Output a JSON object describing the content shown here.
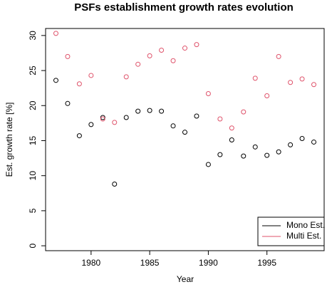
{
  "chart_data": {
    "type": "scatter",
    "title": "PSFs establishment growth rates evolution",
    "x_label": "Year",
    "y_label": "Est. growth rate [%]",
    "x": [
      1977,
      1978,
      1979,
      1980,
      1981,
      1982,
      1983,
      1984,
      1985,
      1986,
      1987,
      1988,
      1989,
      1990,
      1991,
      1992,
      1993,
      1994,
      1995,
      1996,
      1997,
      1998,
      1999
    ],
    "series": [
      {
        "name": "Mono Est.",
        "color": "#000000",
        "values": [
          23.6,
          20.3,
          15.7,
          17.3,
          18.3,
          8.8,
          18.3,
          19.2,
          19.3,
          19.2,
          17.1,
          16.2,
          18.5,
          11.6,
          13.0,
          15.1,
          12.8,
          14.1,
          12.9,
          13.4,
          14.4,
          15.3,
          14.8
        ]
      },
      {
        "name": "Multi Est.",
        "color": "#DF536B",
        "values": [
          30.3,
          27.0,
          23.1,
          24.3,
          18.1,
          17.6,
          24.1,
          25.9,
          27.1,
          27.9,
          26.4,
          28.2,
          28.7,
          21.7,
          18.1,
          16.8,
          19.1,
          23.9,
          21.4,
          27.0,
          23.3,
          23.8,
          23.0
        ]
      }
    ],
    "xlim": [
      1976.12,
      1999.88
    ],
    "ylim": [
      -0.7,
      31.0
    ],
    "xticks": [
      1980,
      1985,
      1990,
      1995
    ],
    "yticks": [
      0,
      5,
      10,
      15,
      20,
      25,
      30
    ],
    "legend": "bottomright"
  }
}
